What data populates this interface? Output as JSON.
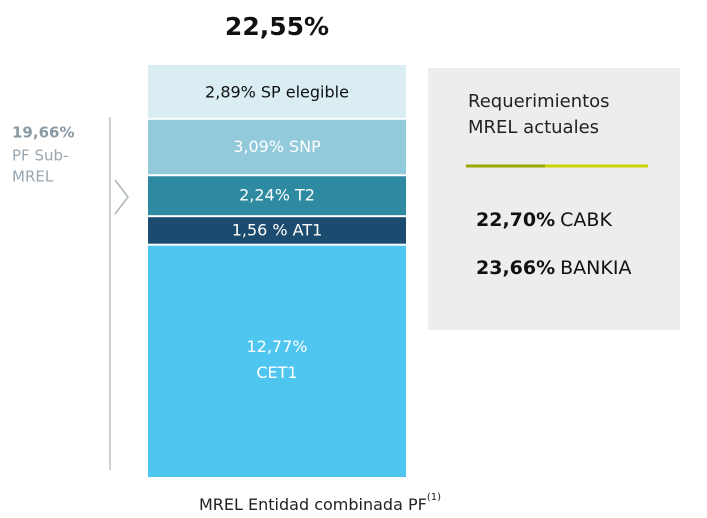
{
  "chart_data": {
    "type": "bar",
    "total_label": "22,55%",
    "categories": [
      "MREL Entidad combinada PF"
    ],
    "footnote_mark": "(1)",
    "series": [
      {
        "name": "CET1",
        "color": "#4fc6f0",
        "text_color": "#ffffff",
        "values": [
          12.77
        ],
        "value_labels": [
          "12,77%"
        ]
      },
      {
        "name": "AT1",
        "color": "#1b4b6e",
        "text_color": "#ffffff",
        "values": [
          1.56
        ],
        "value_labels": [
          "1,56 %"
        ]
      },
      {
        "name": "T2",
        "color": "#2e8aa0",
        "text_color": "#ffffff",
        "values": [
          2.24
        ],
        "value_labels": [
          "2,24%"
        ]
      },
      {
        "name": "SNP",
        "color": "#92cadb",
        "text_color": "#ffffff",
        "values": [
          3.09
        ],
        "value_labels": [
          "3,09%"
        ]
      },
      {
        "name": "SP elegible",
        "color": "#d9edf3",
        "text_color": "#111111",
        "values": [
          2.89
        ],
        "value_labels": [
          "2,89%"
        ]
      }
    ],
    "bracket": {
      "value_label": "19,66%",
      "text": [
        "PF Sub-",
        "MREL"
      ]
    },
    "side_box": {
      "title": [
        "Requerimientos",
        "MREL actuales"
      ],
      "items": [
        {
          "value_label": "22,70%",
          "name": "CABK"
        },
        {
          "value_label": "23,66%",
          "name": "BANKIA"
        }
      ]
    }
  }
}
